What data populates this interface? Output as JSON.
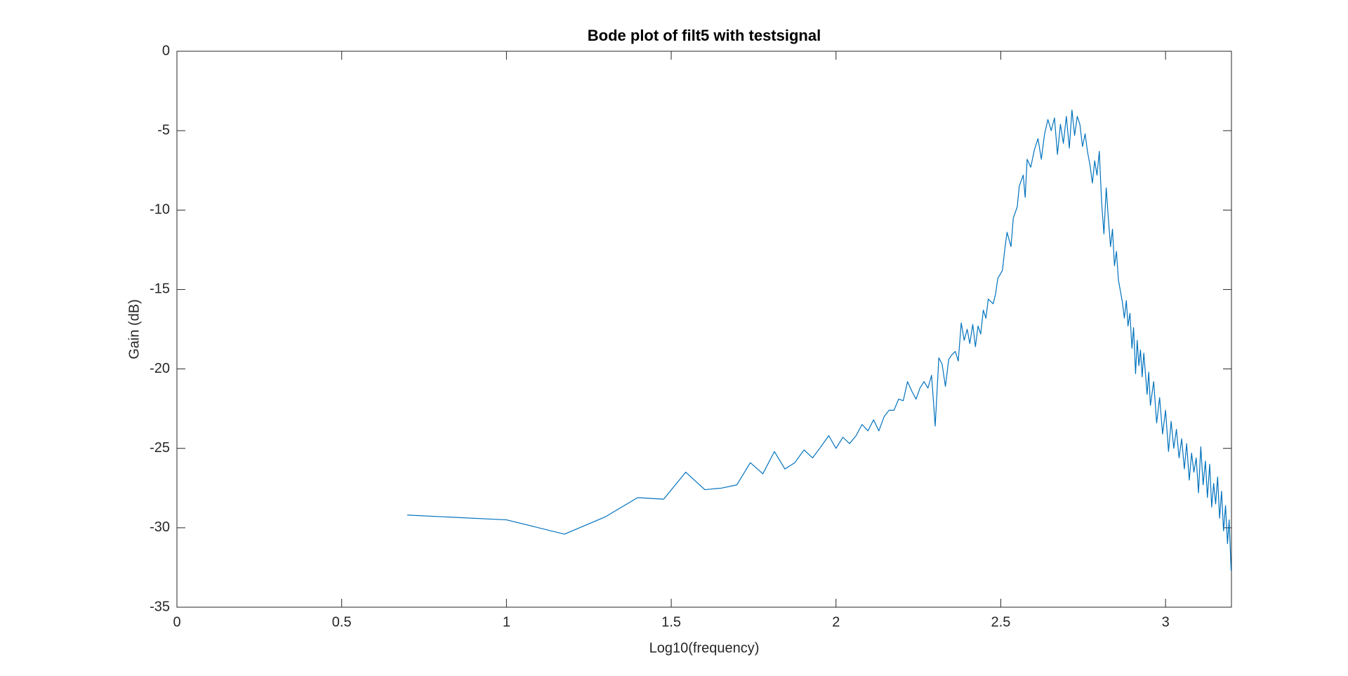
{
  "chart_data": {
    "type": "line",
    "title": "Bode plot of filt5 with testsignal",
    "x_label": "Log10(frequency)",
    "y_label": "Gain (dB)",
    "xlim": [
      0,
      3.2
    ],
    "ylim": [
      -35,
      0
    ],
    "xticks": [
      0,
      0.5,
      1,
      1.5,
      2,
      2.5,
      3
    ],
    "yticks": [
      -35,
      -30,
      -25,
      -20,
      -15,
      -10,
      -5,
      0
    ],
    "grid": false,
    "series": [
      {
        "color": "#0072bd",
        "x": [
          0.699,
          1.0,
          1.176,
          1.301,
          1.398,
          1.477,
          1.544,
          1.602,
          1.653,
          1.699,
          1.74,
          1.778,
          1.813,
          1.845,
          1.875,
          1.903,
          1.929,
          1.954,
          1.978,
          2.0,
          2.021,
          2.041,
          2.061,
          2.079,
          2.097,
          2.114,
          2.13,
          2.146,
          2.161,
          2.176,
          2.19,
          2.204,
          2.217,
          2.23,
          2.243,
          2.255,
          2.267,
          2.279,
          2.29,
          2.301,
          2.312,
          2.322,
          2.332,
          2.342,
          2.352,
          2.362,
          2.371,
          2.38,
          2.389,
          2.398,
          2.406,
          2.415,
          2.423,
          2.431,
          2.439,
          2.447,
          2.455,
          2.462,
          2.477,
          2.484,
          2.491,
          2.505,
          2.512,
          2.519,
          2.531,
          2.538,
          2.55,
          2.556,
          2.568,
          2.574,
          2.58,
          2.591,
          2.602,
          2.613,
          2.623,
          2.633,
          2.643,
          2.653,
          2.663,
          2.672,
          2.681,
          2.69,
          2.699,
          2.708,
          2.716,
          2.724,
          2.732,
          2.74,
          2.748,
          2.756,
          2.763,
          2.771,
          2.778,
          2.785,
          2.792,
          2.799,
          2.806,
          2.813,
          2.82,
          2.826,
          2.833,
          2.839,
          2.845,
          2.851,
          2.857,
          2.869,
          2.875,
          2.881,
          2.886,
          2.892,
          2.898,
          2.903,
          2.909,
          2.914,
          2.919,
          2.924,
          2.929,
          2.934,
          2.944,
          2.949,
          2.954,
          2.964,
          2.973,
          2.982,
          2.991,
          3.0,
          3.009,
          3.017,
          3.025,
          3.033,
          3.041,
          3.049,
          3.057,
          3.064,
          3.072,
          3.079,
          3.086,
          3.093,
          3.1,
          3.107,
          3.114,
          3.121,
          3.127,
          3.134,
          3.14,
          3.146,
          3.152,
          3.158,
          3.164,
          3.17,
          3.176,
          3.182,
          3.188,
          3.193,
          3.199
        ],
        "values": [
          -29.2,
          -29.5,
          -30.4,
          -29.3,
          -28.1,
          -28.2,
          -26.5,
          -27.6,
          -27.5,
          -27.3,
          -25.9,
          -26.6,
          -25.2,
          -26.3,
          -25.9,
          -25.1,
          -25.6,
          -24.9,
          -24.2,
          -25.0,
          -24.3,
          -24.7,
          -24.2,
          -23.5,
          -23.9,
          -23.2,
          -23.9,
          -23.0,
          -22.6,
          -22.6,
          -21.9,
          -22.0,
          -20.8,
          -21.4,
          -21.9,
          -21.2,
          -20.8,
          -21.2,
          -20.4,
          -23.6,
          -19.3,
          -19.7,
          -21.1,
          -19.4,
          -19.1,
          -18.9,
          -19.5,
          -17.1,
          -18.2,
          -17.5,
          -18.4,
          -17.2,
          -18.6,
          -17.3,
          -17.8,
          -16.3,
          -16.8,
          -15.6,
          -15.9,
          -15.3,
          -14.3,
          -13.8,
          -12.5,
          -11.4,
          -12.3,
          -10.5,
          -9.8,
          -8.5,
          -7.8,
          -9.2,
          -6.8,
          -7.3,
          -6.2,
          -5.5,
          -6.8,
          -5.2,
          -4.3,
          -5.0,
          -4.2,
          -6.5,
          -4.6,
          -5.8,
          -4.1,
          -6.1,
          -3.7,
          -5.3,
          -4.1,
          -4.6,
          -6.0,
          -5.2,
          -6.3,
          -7.2,
          -8.3,
          -6.9,
          -7.8,
          -6.3,
          -9.5,
          -11.5,
          -8.6,
          -10.4,
          -12.3,
          -11.2,
          -13.5,
          -12.6,
          -14.4,
          -15.8,
          -16.8,
          -15.7,
          -17.3,
          -16.5,
          -18.7,
          -17.4,
          -20.3,
          -18.2,
          -19.8,
          -18.8,
          -20.5,
          -19.0,
          -21.6,
          -20.2,
          -22.3,
          -20.8,
          -23.4,
          -21.8,
          -24.1,
          -22.6,
          -25.2,
          -23.3,
          -25.0,
          -23.8,
          -25.6,
          -24.4,
          -26.3,
          -24.7,
          -27.0,
          -25.3,
          -26.5,
          -25.6,
          -27.8,
          -24.9,
          -27.3,
          -25.8,
          -28.1,
          -26.0,
          -28.7,
          -27.2,
          -28.5,
          -26.8,
          -29.4,
          -27.7,
          -30.2,
          -28.6,
          -31.0,
          -29.5,
          -32.7
        ]
      }
    ]
  }
}
